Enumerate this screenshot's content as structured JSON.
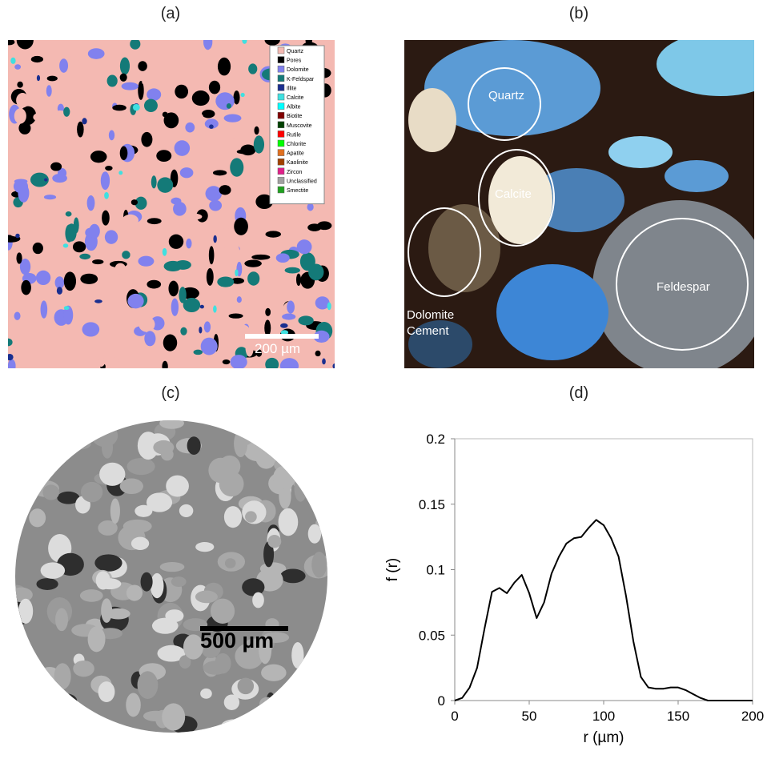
{
  "panel_labels": [
    "(a)",
    "(b)",
    "(c)",
    "(d)"
  ],
  "panel_a": {
    "legend": [
      {
        "name": "Quartz",
        "color": "#f4b9b2"
      },
      {
        "name": "Pores",
        "color": "#000000"
      },
      {
        "name": "Dolomite",
        "color": "#8181ee"
      },
      {
        "name": "K-Feldspar",
        "color": "#147a78"
      },
      {
        "name": "Illite",
        "color": "#1a2f8f"
      },
      {
        "name": "Calcite",
        "color": "#3fe0e0"
      },
      {
        "name": "Albite",
        "color": "#00ffff"
      },
      {
        "name": "Biotite",
        "color": "#800000"
      },
      {
        "name": "Muscovite",
        "color": "#004000"
      },
      {
        "name": "Rutile",
        "color": "#ff0000"
      },
      {
        "name": "Chlorite",
        "color": "#00ff00"
      },
      {
        "name": "Apatite",
        "color": "#e07020"
      },
      {
        "name": "Kaolinite",
        "color": "#a04000"
      },
      {
        "name": "Zircon",
        "color": "#e0208a"
      },
      {
        "name": "Unclassified",
        "color": "#a0a0a0"
      },
      {
        "name": "Smectite",
        "color": "#20a020"
      }
    ],
    "scale_bar": "200 µm"
  },
  "panel_b": {
    "labels": [
      "Quartz",
      "Calcite",
      "Dolomite Cement",
      "Feldespar"
    ]
  },
  "panel_c": {
    "scale_bar": "500 µm"
  },
  "chart_data": {
    "type": "line",
    "xlabel": "r (µm)",
    "ylabel": "f (r)",
    "x": [
      0,
      5,
      10,
      15,
      20,
      25,
      30,
      35,
      40,
      45,
      50,
      55,
      60,
      65,
      70,
      75,
      80,
      85,
      90,
      95,
      100,
      105,
      110,
      115,
      120,
      125,
      130,
      135,
      140,
      145,
      150,
      155,
      160,
      165,
      170,
      180,
      190,
      200
    ],
    "series": [
      {
        "color": "#000000",
        "values": [
          0,
          0.002,
          0.01,
          0.025,
          0.055,
          0.083,
          0.086,
          0.082,
          0.09,
          0.096,
          0.082,
          0.063,
          0.075,
          0.097,
          0.11,
          0.12,
          0.124,
          0.125,
          0.132,
          0.138,
          0.134,
          0.124,
          0.11,
          0.08,
          0.045,
          0.018,
          0.01,
          0.009,
          0.009,
          0.01,
          0.01,
          0.008,
          0.005,
          0.002,
          0,
          0,
          0,
          0
        ]
      }
    ],
    "xlim": [
      0,
      200
    ],
    "xticks": [
      0,
      50,
      100,
      150,
      200
    ],
    "ylim": [
      0,
      0.2
    ],
    "yticks": [
      0,
      0.05,
      0.1,
      0.15,
      0.2
    ]
  }
}
